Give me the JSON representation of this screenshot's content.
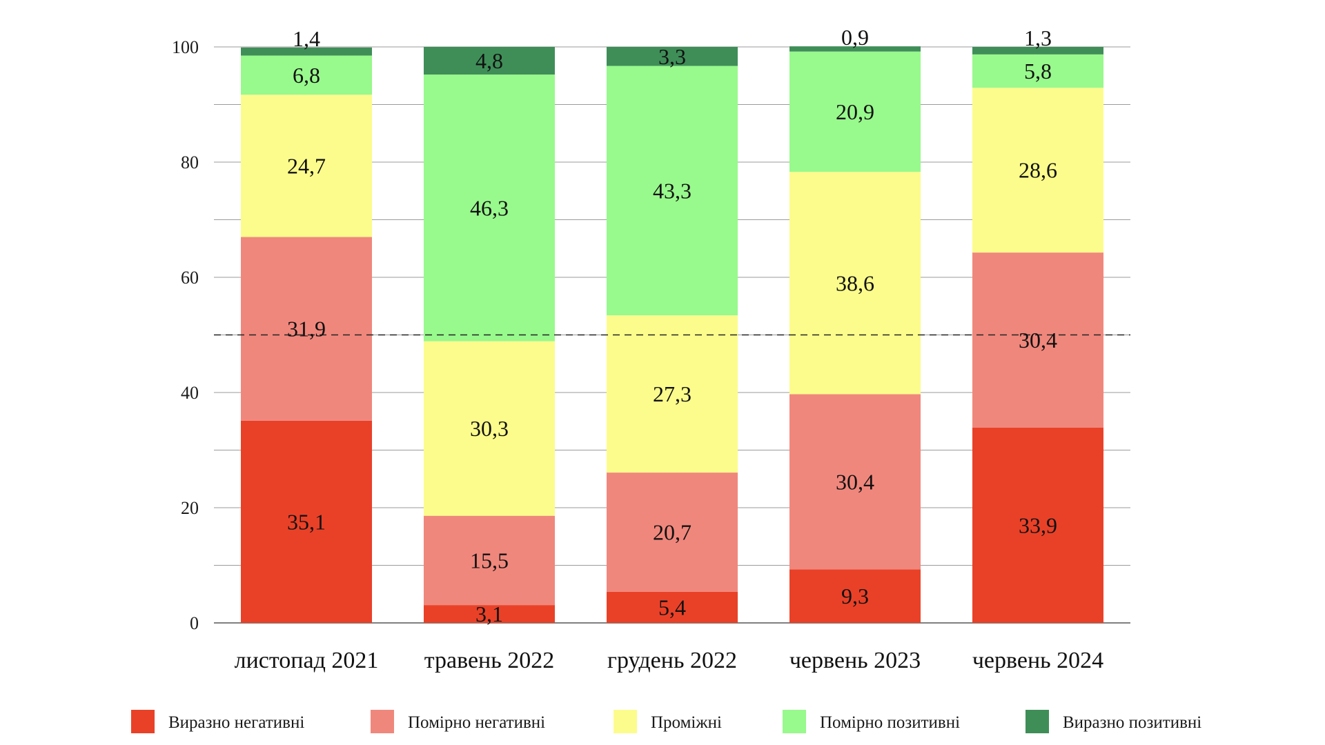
{
  "chart_data": {
    "type": "bar",
    "stacked": true,
    "title": "",
    "xlabel": "",
    "ylabel": "",
    "ylim": [
      0,
      100
    ],
    "yticks": [
      0,
      20,
      40,
      60,
      80,
      100
    ],
    "reference_line": 50,
    "categories": [
      "листопад 2021",
      "травень 2022",
      "грудень 2022",
      "червень 2023",
      "червень 2024"
    ],
    "series": [
      {
        "name": "Виразно негативні",
        "color": "#e94128",
        "values": [
          35.1,
          3.1,
          5.4,
          9.3,
          33.9
        ],
        "labels": [
          "35,1",
          "3,1",
          "5,4",
          "9,3",
          "33,9"
        ]
      },
      {
        "name": "Помірно негативні",
        "color": "#f0877c",
        "values": [
          31.9,
          15.5,
          20.7,
          30.4,
          30.4
        ],
        "labels": [
          "31,9",
          "15,5",
          "20,7",
          "30,4",
          "30,4"
        ]
      },
      {
        "name": "Проміжні",
        "color": "#fcfc8c",
        "values": [
          24.7,
          30.3,
          27.3,
          38.6,
          28.6
        ],
        "labels": [
          "24,7",
          "30,3",
          "27,3",
          "38,6",
          "28,6"
        ]
      },
      {
        "name": "Помірно позитивні",
        "color": "#98f98c",
        "values": [
          6.8,
          46.3,
          43.3,
          20.9,
          5.8
        ],
        "labels": [
          "6,8",
          "46,3",
          "43,3",
          "20,9",
          "5,8"
        ]
      },
      {
        "name": "Виразно позитивні",
        "color": "#3f8e58",
        "values": [
          1.4,
          4.8,
          3.3,
          0.9,
          1.3
        ],
        "labels": [
          "1,4",
          "4,8",
          "3,3",
          "0,9",
          "1,3"
        ]
      }
    ],
    "legend_position": "bottom"
  }
}
